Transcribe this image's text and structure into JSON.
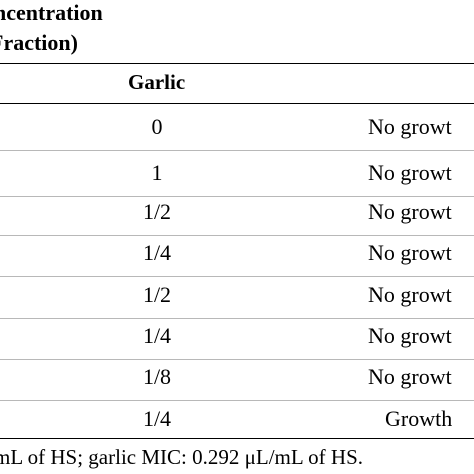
{
  "header": {
    "line1": "ncentration",
    "line2": "Fraction)"
  },
  "table": {
    "column_header": "Garlic",
    "rows": [
      {
        "garlic": "0",
        "result": "No growt"
      },
      {
        "garlic": "1",
        "result": "No growt"
      },
      {
        "garlic": "1/2",
        "result": "No growt"
      },
      {
        "garlic": "1/4",
        "result": "No growt"
      },
      {
        "garlic": "1/2",
        "result": "No growt"
      },
      {
        "garlic": "1/4",
        "result": "No growt"
      },
      {
        "garlic": "1/8",
        "result": "No growt"
      },
      {
        "garlic": "1/4",
        "result": "Growth"
      }
    ]
  },
  "footnote": "mL of HS; garlic MIC: 0.292 μL/mL of HS."
}
